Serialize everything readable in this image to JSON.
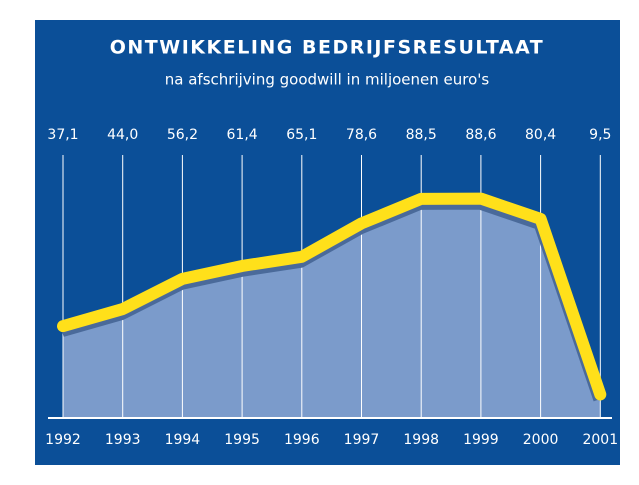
{
  "chart_data": {
    "type": "area",
    "title": "ONTWIKKELING BEDRIJFSRESULTAAT",
    "subtitle": "na afschrijving goodwill in miljoenen euro's",
    "categories": [
      "1992",
      "1993",
      "1994",
      "1995",
      "1996",
      "1997",
      "1998",
      "1999",
      "2000",
      "2001"
    ],
    "values": [
      37.1,
      44.0,
      56.2,
      61.4,
      65.1,
      78.6,
      88.5,
      88.6,
      80.4,
      9.5
    ],
    "value_labels": [
      "37,1",
      "44,0",
      "56,2",
      "61,4",
      "65,1",
      "78,6",
      "88,5",
      "88,6",
      "80,4",
      "9,5"
    ],
    "color": "#ffe01a",
    "ylim": [
      0,
      105
    ]
  }
}
